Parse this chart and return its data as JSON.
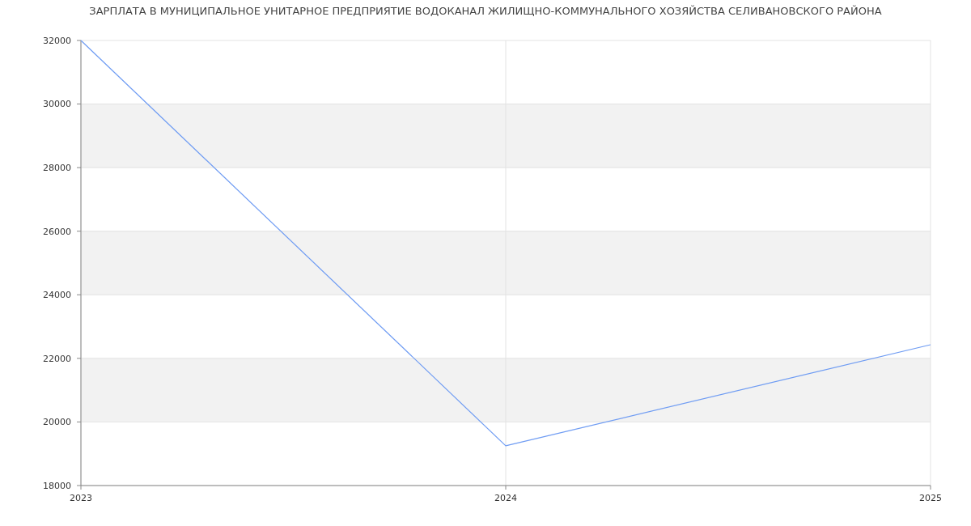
{
  "chart_data": {
    "type": "line",
    "title": "ЗАРПЛАТА В МУНИЦИПАЛЬНОЕ УНИТАРНОЕ ПРЕДПРИЯТИЕ ВОДОКАНАЛ ЖИЛИЩНО-КОММУНАЛЬНОГО ХОЗЯЙСТВА СЕЛИВАНОВСКОГО РАЙОНА",
    "x": [
      2023,
      2024,
      2025
    ],
    "series": [
      {
        "color": "#6f9cf3",
        "values": [
          32000,
          19250,
          22430
        ]
      }
    ],
    "xlim": [
      2023,
      2025
    ],
    "xticks": [
      2023,
      2024,
      2025
    ],
    "ylim": [
      18000,
      32000
    ],
    "yticks": [
      18000,
      20000,
      22000,
      24000,
      26000,
      28000,
      30000,
      32000
    ],
    "grid": true,
    "marker": "none",
    "line_style": "solid"
  }
}
